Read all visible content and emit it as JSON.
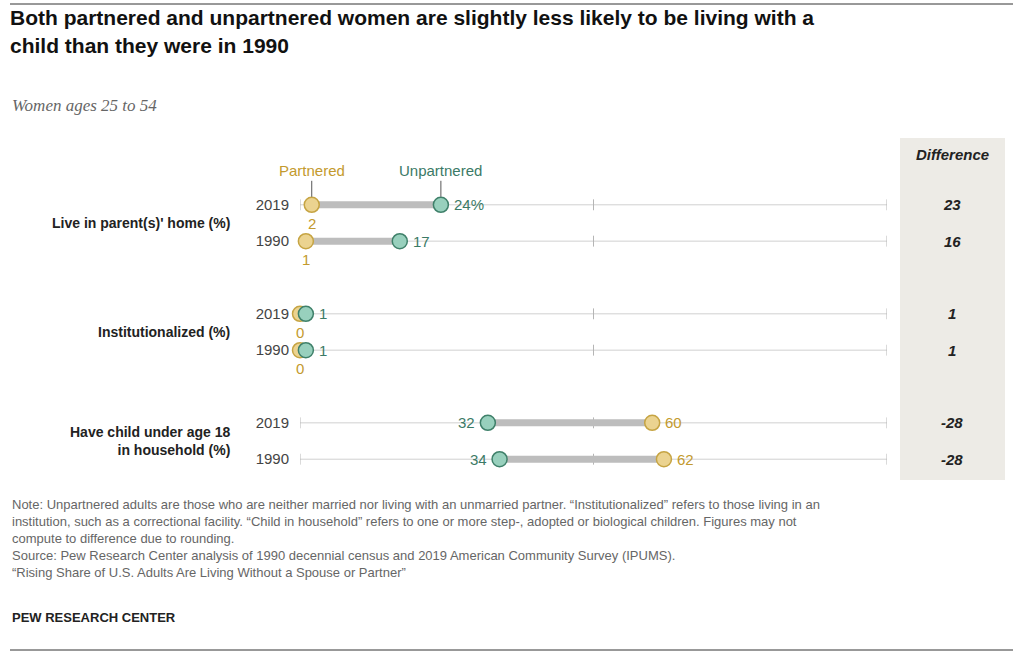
{
  "chart_data": {
    "type": "dumbbell",
    "title": "Both partnered and unpartnered women are slightly less likely to be living with a child than they were in 1990",
    "subtitle": "Women ages 25 to 54",
    "groups": [
      [
        "Live in parent(s)' home (%)"
      ],
      [
        "Institutionalized (%)"
      ],
      [
        "Have child under age 18",
        "in household (%)"
      ]
    ],
    "categories": [
      "2019",
      "1990",
      "2019",
      "1990",
      "2019",
      "1990"
    ],
    "series": [
      {
        "name": "Partnered",
        "color": "#EBD390",
        "values": [
          2,
          1,
          0,
          0,
          60,
          62
        ]
      },
      {
        "name": "Unpartnered",
        "color": "#98D0BD",
        "values": [
          24,
          17,
          1,
          1,
          32,
          34
        ],
        "value_labels": [
          "24%",
          "17",
          "1",
          "1",
          "32",
          "34"
        ]
      }
    ],
    "difference": {
      "label": "Difference",
      "values": [
        23,
        16,
        1,
        1,
        -28,
        -28
      ]
    },
    "xlim": [
      0,
      100
    ],
    "xticks": [
      0,
      50,
      100
    ],
    "tick_labels": "y",
    "data_labels": true,
    "notes": [
      "Note: Unpartnered adults are those who are neither married nor living with an unmarried partner. “Institutionalized” refers to those living in an institution, such as a correctional facility. “Child in household” refers to one or more step-, adopted or biological children. Figures may not compute to difference due to rounding.",
      "Source: Pew Research Center analysis of 1990 decennial census and 2019 American Community Survey (IPUMS).",
      "“Rising Share of U.S. Adults Are Living Without a Spouse or Partner”"
    ],
    "credit": "PEW RESEARCH CENTER"
  }
}
